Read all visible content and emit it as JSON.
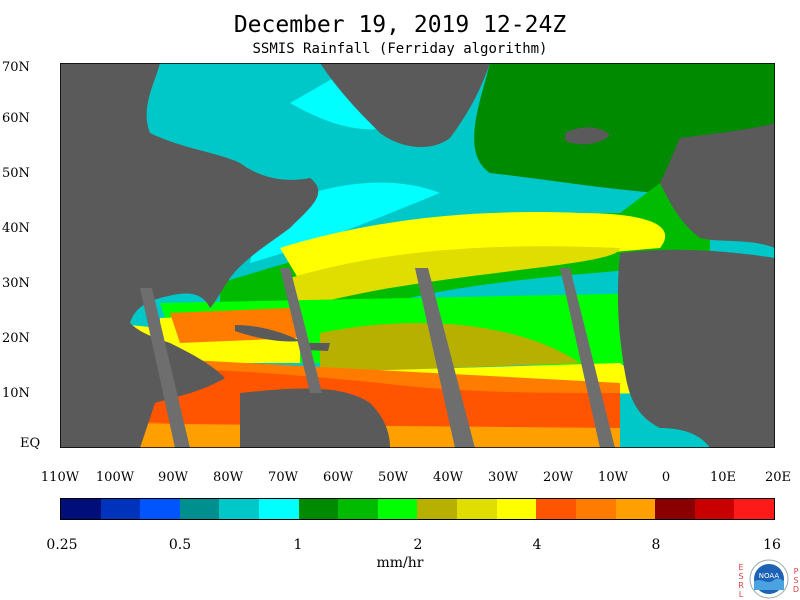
{
  "header": {
    "title": "December 19, 2019 12-24Z",
    "subtitle": "SSMIS Rainfall (Ferriday algorithm)"
  },
  "map": {
    "lat_labels": [
      "70N",
      "60N",
      "50N",
      "40N",
      "30N",
      "20N",
      "10N",
      "EQ"
    ],
    "lon_labels": [
      "110W",
      "100W",
      "90W",
      "80W",
      "70W",
      "60W",
      "50W",
      "40W",
      "30W",
      "20W",
      "10W",
      "0",
      "10E",
      "20E"
    ],
    "land_color": "#5a5a5a",
    "gap_color": "#6e6e6e"
  },
  "colorbar": {
    "colors": [
      "#000e7a",
      "#0033bb",
      "#0055ff",
      "#008f8f",
      "#00c8c8",
      "#00ffff",
      "#008a00",
      "#00bb00",
      "#00ff00",
      "#b8b000",
      "#e0dd00",
      "#ffff00",
      "#ff5500",
      "#ff7c00",
      "#ffa000",
      "#8a0000",
      "#c80000",
      "#ff1a1a"
    ],
    "tick_labels": [
      "0.25",
      "0.5",
      "1",
      "2",
      "4",
      "8",
      "16"
    ],
    "units": "mm/hr"
  },
  "logo": {
    "left_letters": [
      "E",
      "S",
      "R",
      "L"
    ],
    "right_letters": [
      "P",
      "S",
      "D"
    ],
    "badge_text": "NOAA"
  }
}
